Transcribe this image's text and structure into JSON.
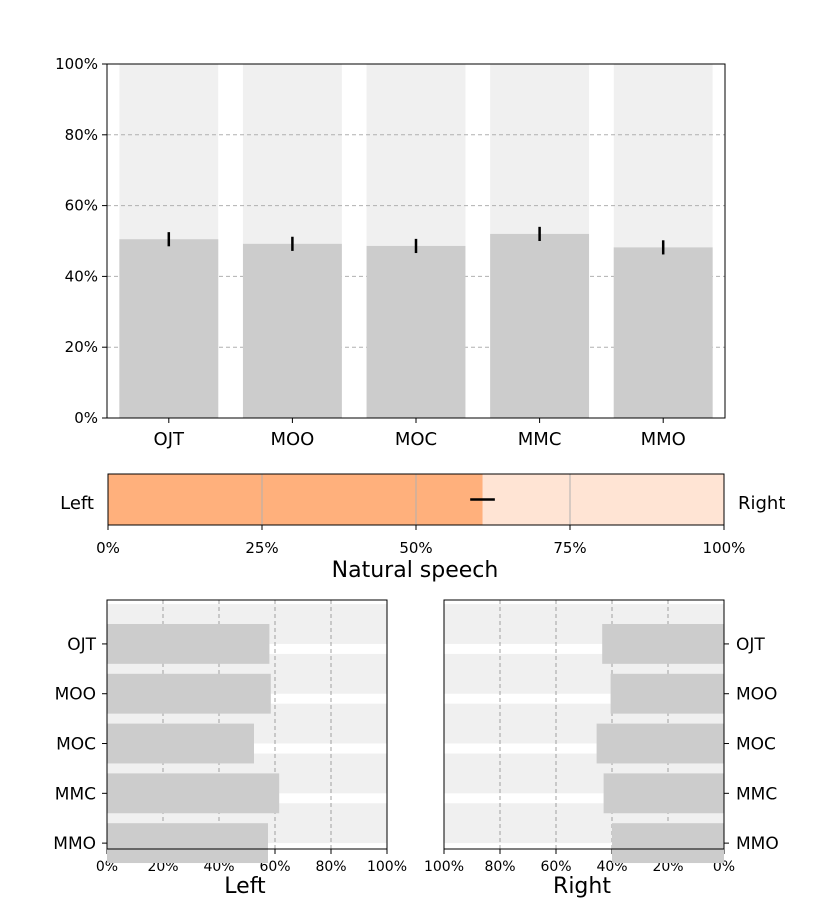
{
  "chart_data": [
    {
      "type": "bar",
      "categories": [
        "OJT",
        "MOO",
        "MOC",
        "MMC",
        "MMO"
      ],
      "values": [
        50.5,
        49.2,
        48.6,
        52.0,
        48.2
      ],
      "error": [
        2.0,
        2.0,
        2.0,
        2.0,
        2.0
      ],
      "background_value": 100,
      "ylim": [
        0,
        100
      ],
      "yticks": [
        "0%",
        "20%",
        "40%",
        "60%",
        "80%",
        "100%"
      ],
      "grid": true,
      "bar_color": "#cccccc",
      "background_color": "#f0f0f0"
    },
    {
      "type": "bar",
      "orientation": "horizontal",
      "value": 60.8,
      "error": 2.0,
      "left_label": "Left",
      "right_label": "Right",
      "xlabel": "Natural speech",
      "xlim": [
        0,
        100
      ],
      "xticks": [
        "0%",
        "25%",
        "50%",
        "75%",
        "100%"
      ],
      "fill_color": "#ffb07c",
      "background_color": "#ffe4d4"
    },
    {
      "type": "bar",
      "orientation": "horizontal",
      "categories": [
        "OJT",
        "MOO",
        "MOC",
        "MMC",
        "MMO"
      ],
      "values": [
        58.0,
        58.5,
        52.5,
        61.5,
        57.5
      ],
      "xlabel": "Left",
      "xlim": [
        0,
        100
      ],
      "xticks": [
        "0%",
        "20%",
        "40%",
        "60%",
        "80%",
        "100%"
      ],
      "grid": true
    },
    {
      "type": "bar",
      "orientation": "horizontal",
      "direction": "reversed",
      "categories": [
        "OJT",
        "MOO",
        "MOC",
        "MMC",
        "MMO"
      ],
      "values": [
        43.5,
        40.5,
        45.5,
        43.0,
        40.0
      ],
      "xlabel": "Right",
      "xlim": [
        100,
        0
      ],
      "xticks": [
        "100%",
        "80%",
        "60%",
        "40%",
        "20%",
        "0%"
      ],
      "grid": true
    }
  ]
}
